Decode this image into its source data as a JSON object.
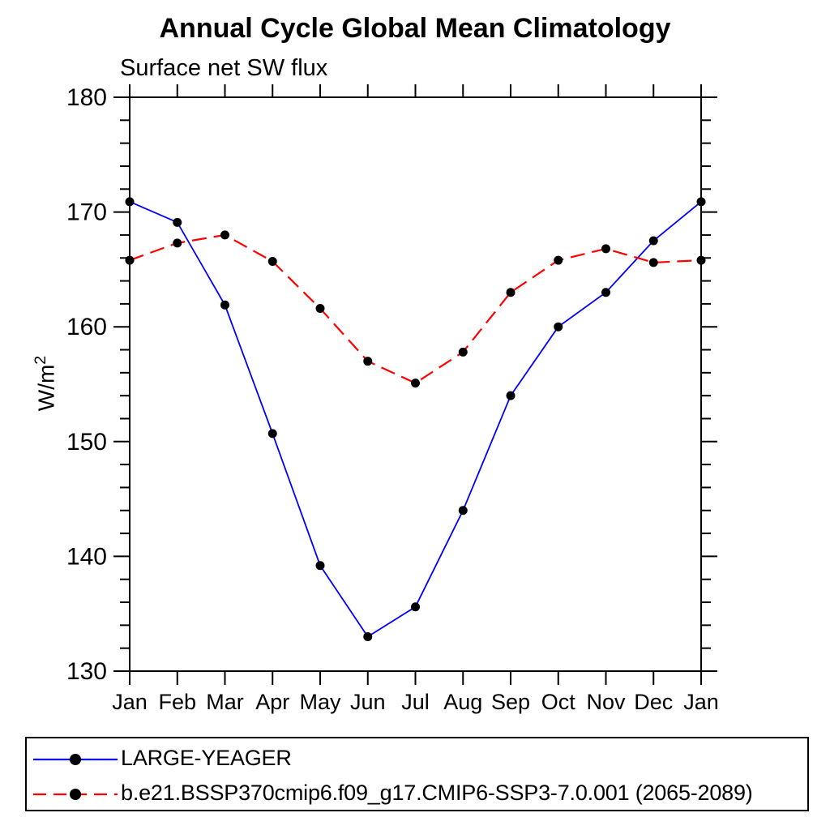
{
  "header": {
    "title": "Annual Cycle Global Mean Climatology",
    "subtitle": "Surface net SW flux"
  },
  "chart_data": {
    "type": "line",
    "title": "Annual Cycle Global Mean Climatology",
    "subtitle": "Surface net SW flux",
    "categories": [
      "Jan",
      "Feb",
      "Mar",
      "Apr",
      "May",
      "Jun",
      "Jul",
      "Aug",
      "Sep",
      "Oct",
      "Nov",
      "Dec",
      "Jan"
    ],
    "series": [
      {
        "name": "LARGE-YEAGER",
        "color": "#0000ff",
        "line_style": "solid",
        "marker": "filled-circle",
        "marker_color": "#000000",
        "values": [
          170.9,
          169.1,
          161.9,
          150.7,
          139.2,
          133.0,
          135.6,
          144.0,
          154.0,
          160.0,
          163.0,
          167.5,
          170.9
        ]
      },
      {
        "name": "b.e21.BSSP370cmip6.f09_g17.CMIP6-SSP3-7.0.001 (2065-2089)",
        "color": "#ff0000",
        "line_style": "dashed",
        "marker": "filled-circle",
        "marker_color": "#000000",
        "values": [
          165.8,
          167.3,
          168.0,
          165.7,
          161.6,
          157.0,
          155.1,
          157.8,
          163.0,
          165.8,
          166.8,
          165.6,
          165.8
        ]
      }
    ],
    "xlabel": "",
    "ylabel_base": "W/m",
    "ylabel_sup": "2",
    "ylim": [
      130,
      180
    ],
    "yticks": {
      "major_step": 10,
      "minor_step": 2
    },
    "ytick_labels": [
      "130",
      "140",
      "150",
      "160",
      "170",
      "180"
    ],
    "grid": false,
    "legend_position": "bottom-left-box",
    "axis_color": "#000000",
    "background_color": "#ffffff"
  }
}
